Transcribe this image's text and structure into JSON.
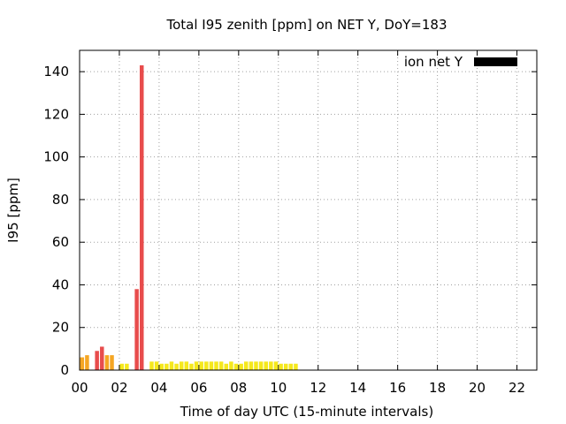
{
  "chart_data": {
    "type": "bar",
    "title": "Total I95 zenith [ppm] on NET Y, DoY=183",
    "xlabel": "Time of day UTC (15-minute intervals)",
    "ylabel": "I95 [ppm]",
    "xlim": [
      0,
      23
    ],
    "ylim": [
      0,
      150
    ],
    "x_ticks": [
      "00",
      "02",
      "04",
      "06",
      "08",
      "10",
      "12",
      "14",
      "16",
      "18",
      "20",
      "22"
    ],
    "y_ticks": [
      "0",
      "20",
      "40",
      "60",
      "80",
      "100",
      "120",
      "140"
    ],
    "grid": true,
    "legend": {
      "label": "ion net Y",
      "color": "#000000",
      "placement": "top-right"
    },
    "x_unit": "hours",
    "interval_minutes": 15,
    "values": [
      6,
      7,
      0,
      9,
      11,
      7,
      7,
      0,
      3,
      3,
      0,
      38,
      143,
      0,
      4,
      4,
      3,
      3,
      4,
      3,
      4,
      4,
      3,
      4,
      4,
      4,
      4,
      4,
      4,
      3,
      4,
      3,
      3,
      4,
      4,
      4,
      4,
      4,
      4,
      4,
      3,
      3,
      3,
      3,
      0,
      0,
      0,
      0,
      0,
      0,
      0,
      0,
      0,
      0,
      0,
      0,
      0,
      0,
      0,
      0,
      0,
      0,
      0,
      0
    ],
    "colors": {
      "low": "#f5e81c",
      "mid": "#f5a623",
      "high": "#e84c4c"
    }
  }
}
